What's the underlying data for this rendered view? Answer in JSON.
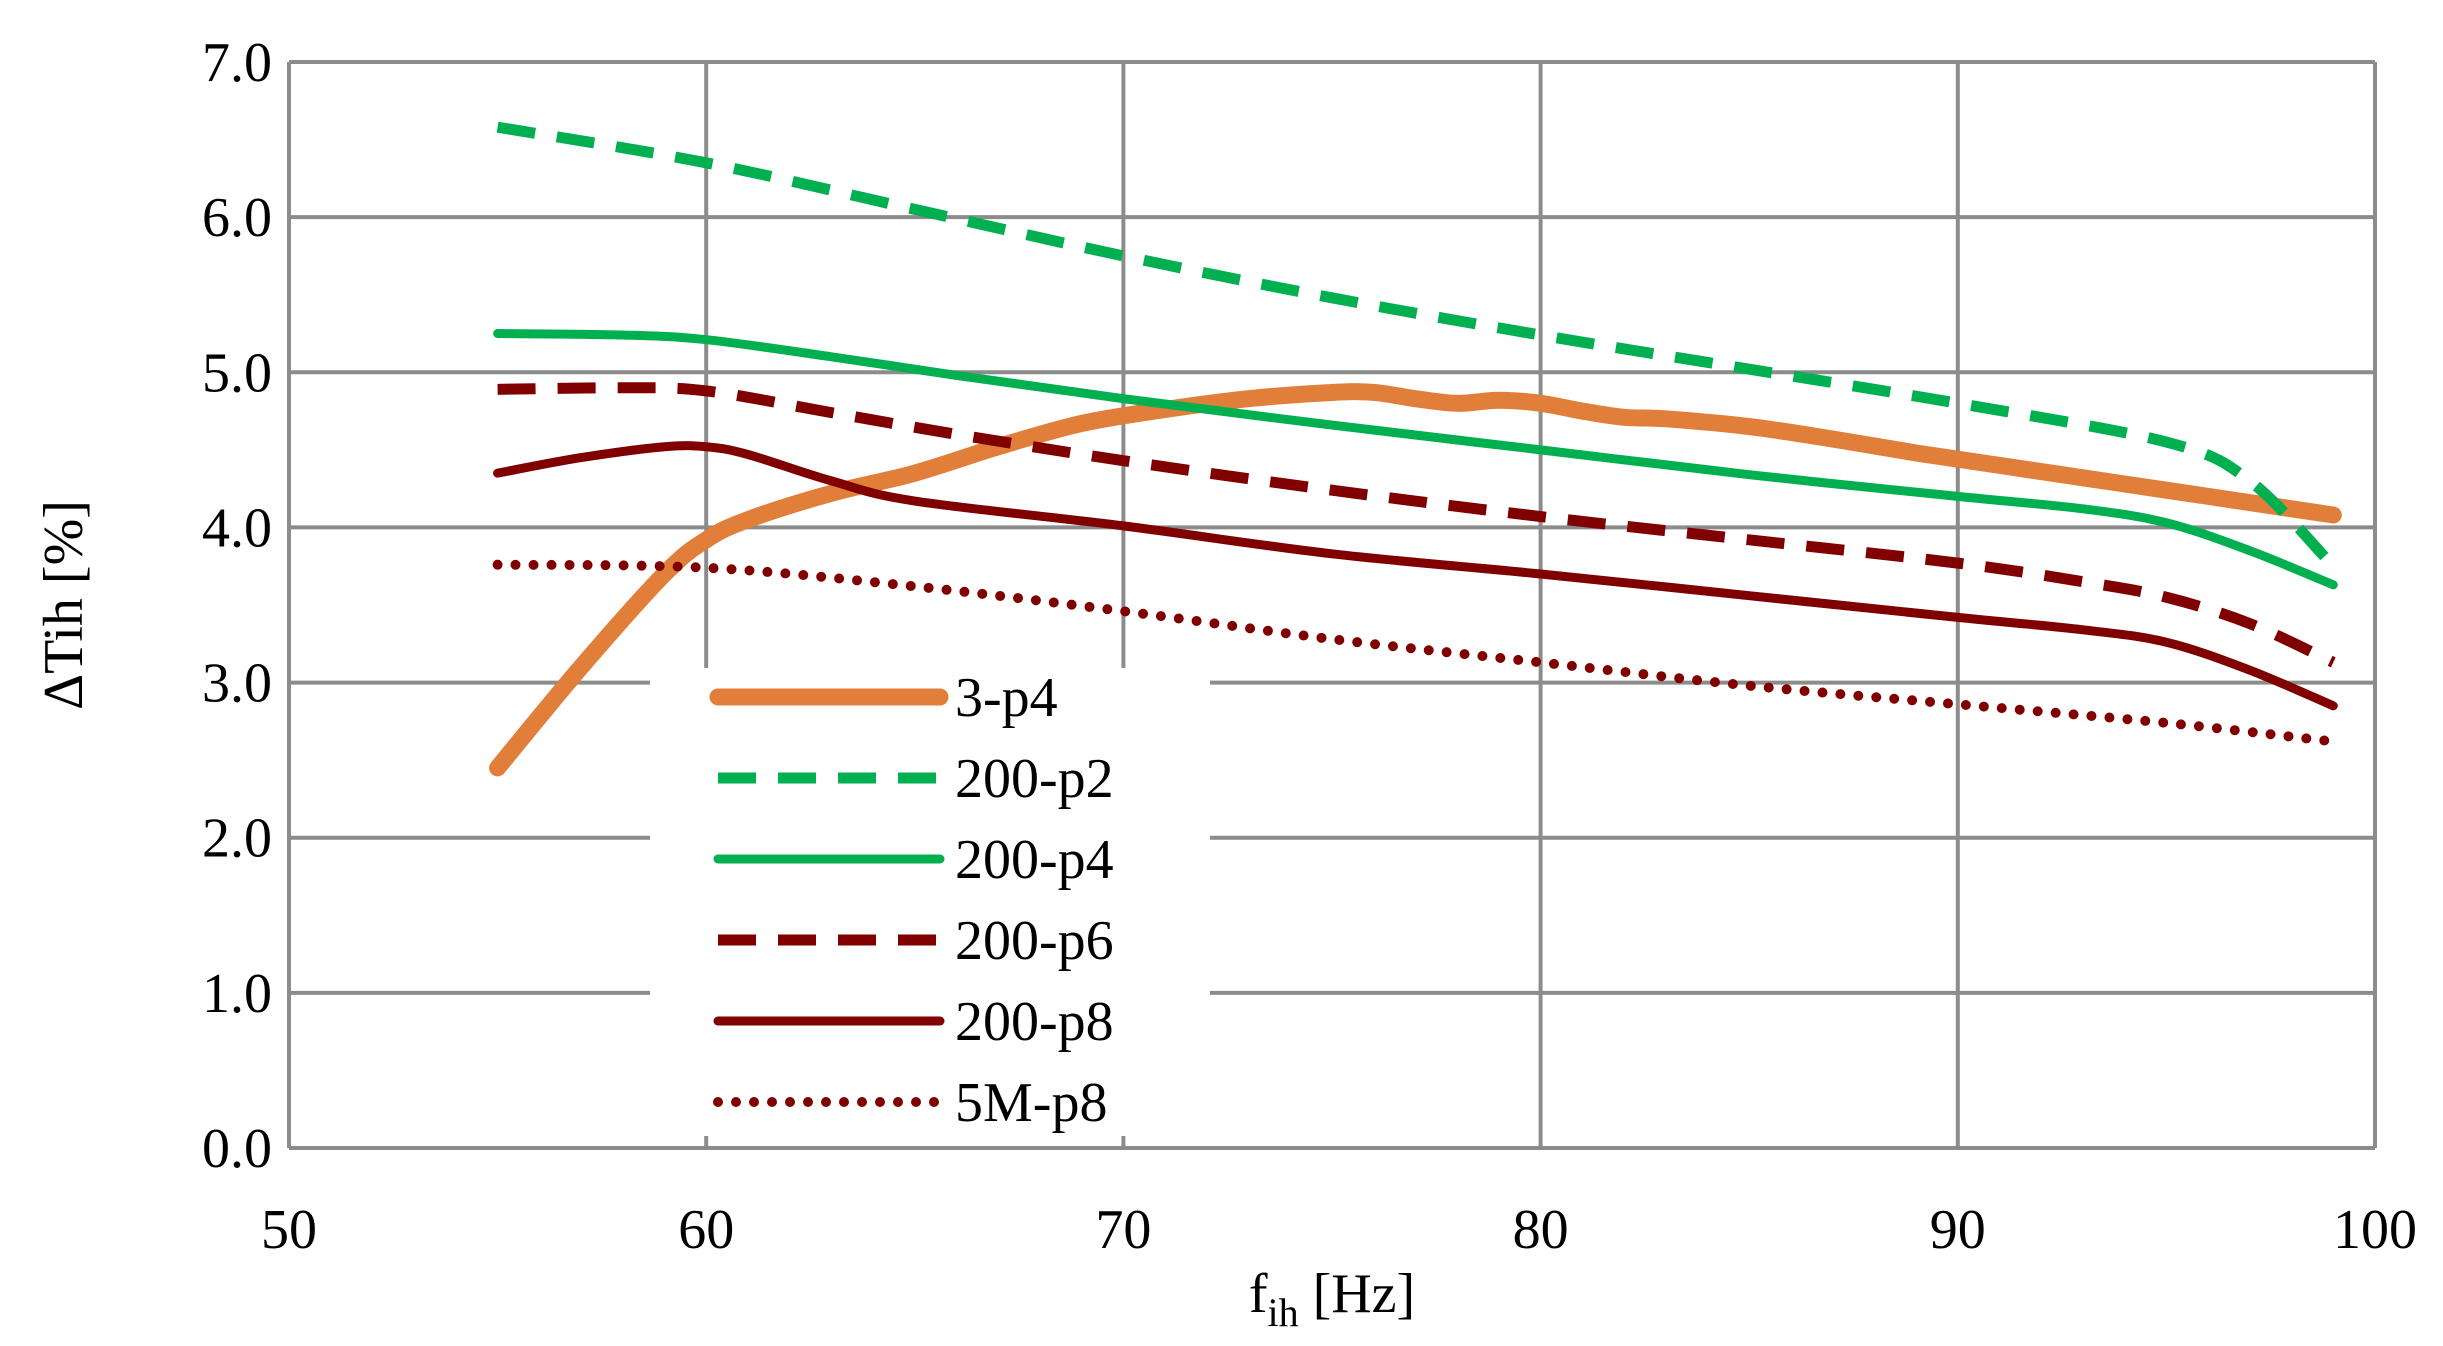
{
  "chart_data": {
    "type": "line",
    "title": "",
    "xlabel": "f",
    "xlabel_subscript": "ih",
    "xlabel_unit": " [Hz]",
    "ylabel": "ΔTih  [%]",
    "xlim": [
      50,
      100
    ],
    "ylim": [
      0,
      7
    ],
    "x_ticks": [
      50,
      60,
      70,
      80,
      90,
      100
    ],
    "y_ticks": [
      0,
      1,
      2,
      3,
      4,
      5,
      6,
      7
    ],
    "x_tick_labels": [
      "50",
      "60",
      "70",
      "80",
      "90",
      "100"
    ],
    "y_tick_labels": [
      "0.0",
      "1.0",
      "2.0",
      "3.0",
      "4.0",
      "5.0",
      "6.0",
      "7.0"
    ],
    "grid": true,
    "legend_position": "bottom-left",
    "series": [
      {
        "name": "3-p4",
        "color": "#E07E3A",
        "style": "solid-thick",
        "x": [
          55,
          57,
          59,
          60,
          61,
          63,
          65,
          67,
          69,
          71,
          73,
          75,
          76,
          77,
          78,
          79,
          80,
          81,
          82,
          83,
          85,
          87,
          89,
          91,
          93,
          95,
          97,
          99
        ],
        "y": [
          2.45,
          3.1,
          3.7,
          3.92,
          4.05,
          4.22,
          4.35,
          4.52,
          4.67,
          4.76,
          4.83,
          4.87,
          4.87,
          4.83,
          4.8,
          4.82,
          4.8,
          4.75,
          4.71,
          4.7,
          4.65,
          4.57,
          4.48,
          4.4,
          4.32,
          4.24,
          4.16,
          4.08
        ]
      },
      {
        "name": "200-p2",
        "color": "#00B050",
        "style": "dashed",
        "x": [
          55,
          60,
          65,
          70,
          75,
          80,
          85,
          90,
          95,
          97,
          99
        ],
        "y": [
          6.58,
          6.35,
          6.05,
          5.75,
          5.48,
          5.24,
          5.02,
          4.8,
          4.55,
          4.3,
          3.75
        ]
      },
      {
        "name": "200-p4",
        "color": "#00B050",
        "style": "solid",
        "x": [
          55,
          58,
          60,
          63,
          66,
          70,
          75,
          80,
          85,
          90,
          93,
          95,
          97,
          99
        ],
        "y": [
          5.25,
          5.24,
          5.21,
          5.1,
          4.98,
          4.83,
          4.66,
          4.5,
          4.34,
          4.2,
          4.12,
          4.03,
          3.85,
          3.63
        ]
      },
      {
        "name": "200-p6",
        "color": "#800000",
        "style": "dashed",
        "x": [
          55,
          58,
          60,
          63,
          66,
          70,
          75,
          80,
          85,
          90,
          93,
          95,
          97,
          99
        ],
        "y": [
          4.89,
          4.9,
          4.88,
          4.74,
          4.6,
          4.43,
          4.24,
          4.07,
          3.92,
          3.77,
          3.65,
          3.55,
          3.38,
          3.13
        ]
      },
      {
        "name": "200-p8",
        "color": "#800000",
        "style": "solid",
        "x": [
          55,
          57,
          59,
          60,
          61,
          63,
          65,
          70,
          75,
          80,
          85,
          90,
          93,
          95,
          97,
          99
        ],
        "y": [
          4.35,
          4.45,
          4.52,
          4.52,
          4.47,
          4.3,
          4.17,
          4.01,
          3.83,
          3.7,
          3.56,
          3.42,
          3.34,
          3.26,
          3.08,
          2.85
        ]
      },
      {
        "name": "5M-p8",
        "color": "#800000",
        "style": "dotted",
        "x": [
          55,
          60,
          65,
          70,
          75,
          80,
          85,
          90,
          95,
          99
        ],
        "y": [
          3.76,
          3.74,
          3.62,
          3.46,
          3.28,
          3.13,
          2.98,
          2.86,
          2.74,
          2.62
        ]
      }
    ]
  }
}
